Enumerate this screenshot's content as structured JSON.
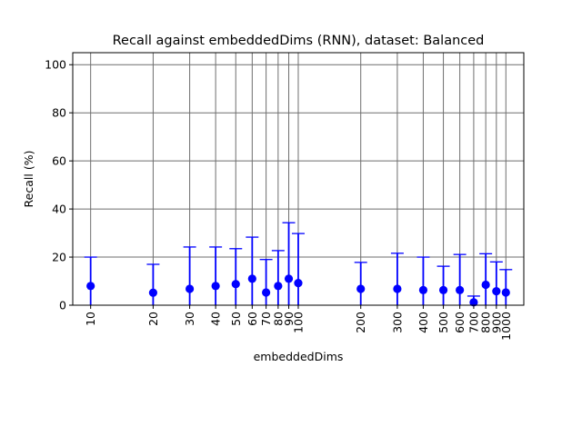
{
  "chart_data": {
    "type": "scatter",
    "title": "Recall against embeddedDims (RNN), dataset: Balanced",
    "xlabel": "embeddedDims",
    "ylabel": "Recall (%)",
    "x_scale": "log",
    "xlim": [
      8.2,
      1220
    ],
    "ylim": [
      0,
      105
    ],
    "yticks": [
      0,
      20,
      40,
      60,
      80,
      100
    ],
    "grid": true,
    "point_color": "#0000ff",
    "grid_color": "#6e6e6e",
    "error_bars": "upper",
    "x": [
      10,
      20,
      30,
      40,
      50,
      60,
      70,
      80,
      90,
      100,
      200,
      300,
      400,
      500,
      600,
      700,
      800,
      900,
      1000
    ],
    "x_tick_labels": [
      "10",
      "20",
      "30",
      "40",
      "50",
      "60",
      "70",
      "80",
      "90",
      "100",
      "200",
      "300",
      "400",
      "500",
      "600",
      "700",
      "800",
      "900",
      "1000"
    ],
    "y": [
      8.0,
      5.2,
      6.8,
      8.0,
      8.8,
      11.0,
      5.3,
      8.0,
      11.0,
      9.2,
      6.8,
      6.8,
      6.3,
      6.3,
      6.3,
      1.2,
      8.5,
      5.8,
      5.3
    ],
    "y_upper": [
      20.0,
      17.0,
      24.2,
      24.2,
      23.5,
      28.3,
      19.0,
      22.7,
      34.3,
      29.8,
      17.8,
      21.6,
      20.0,
      16.2,
      21.1,
      3.8,
      21.4,
      18.0,
      14.8
    ]
  }
}
